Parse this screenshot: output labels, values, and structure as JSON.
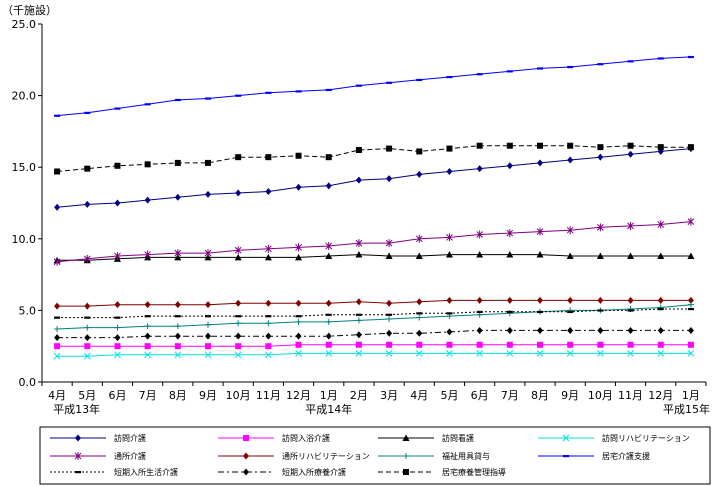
{
  "chart_data": {
    "type": "line",
    "unit_label": "（千施設）",
    "x": [
      "4月",
      "5月",
      "6月",
      "7月",
      "8月",
      "9月",
      "10月",
      "11月",
      "12月",
      "1月",
      "2月",
      "3月",
      "4月",
      "5月",
      "6月",
      "7月",
      "8月",
      "9月",
      "10月",
      "11月",
      "12月",
      "1月"
    ],
    "year_labels": [
      {
        "label": "平成13年",
        "index": 0
      },
      {
        "label": "平成14年",
        "index": 9
      },
      {
        "label": "平成15年",
        "index": 21
      }
    ],
    "ylim": [
      0,
      25
    ],
    "yticks": [
      "0.0",
      "5.0",
      "10.0",
      "15.0",
      "20.0",
      "25.0"
    ],
    "grid": false,
    "legend_position": "bottom",
    "series": [
      {
        "name": "訪問介護",
        "color": "#000080",
        "marker": "diamond",
        "dash": "solid",
        "values": [
          12.2,
          12.4,
          12.5,
          12.7,
          12.9,
          13.1,
          13.2,
          13.3,
          13.6,
          13.7,
          14.1,
          14.2,
          14.5,
          14.7,
          14.9,
          15.1,
          15.3,
          15.5,
          15.7,
          15.9,
          16.1,
          16.3
        ]
      },
      {
        "name": "訪問入浴介護",
        "color": "#ff00ff",
        "marker": "square",
        "dash": "solid",
        "values": [
          2.5,
          2.5,
          2.5,
          2.5,
          2.5,
          2.5,
          2.5,
          2.5,
          2.6,
          2.6,
          2.6,
          2.6,
          2.6,
          2.6,
          2.6,
          2.6,
          2.6,
          2.6,
          2.6,
          2.6,
          2.6,
          2.6
        ]
      },
      {
        "name": "訪問看護",
        "color": "#000000",
        "marker": "triangle",
        "dash": "solid",
        "values": [
          8.5,
          8.5,
          8.6,
          8.7,
          8.7,
          8.7,
          8.7,
          8.7,
          8.7,
          8.8,
          8.9,
          8.8,
          8.8,
          8.9,
          8.9,
          8.9,
          8.9,
          8.8,
          8.8,
          8.8,
          8.8,
          8.8
        ]
      },
      {
        "name": "訪問リハビリテーション",
        "color": "#00e0e0",
        "marker": "x",
        "dash": "solid",
        "values": [
          1.8,
          1.8,
          1.9,
          1.9,
          1.9,
          1.9,
          1.9,
          1.9,
          2.0,
          2.0,
          2.0,
          2.0,
          2.0,
          2.0,
          2.0,
          2.0,
          2.0,
          2.0,
          2.0,
          2.0,
          2.0,
          2.0
        ]
      },
      {
        "name": "通所介護",
        "color": "#800080",
        "marker": "star",
        "dash": "solid",
        "values": [
          8.4,
          8.6,
          8.8,
          8.9,
          9.0,
          9.0,
          9.2,
          9.3,
          9.4,
          9.5,
          9.7,
          9.7,
          10.0,
          10.1,
          10.3,
          10.4,
          10.5,
          10.6,
          10.8,
          10.9,
          11.0,
          11.2
        ]
      },
      {
        "name": "通所リハビリテーション",
        "color": "#800000",
        "marker": "diamond",
        "dash": "solid",
        "values": [
          5.3,
          5.3,
          5.4,
          5.4,
          5.4,
          5.4,
          5.5,
          5.5,
          5.5,
          5.5,
          5.6,
          5.5,
          5.6,
          5.7,
          5.7,
          5.7,
          5.7,
          5.7,
          5.7,
          5.7,
          5.7,
          5.7
        ]
      },
      {
        "name": "福祉用具貸与",
        "color": "#008080",
        "marker": "plus",
        "dash": "solid",
        "values": [
          3.7,
          3.8,
          3.8,
          3.9,
          3.9,
          4.0,
          4.1,
          4.1,
          4.2,
          4.2,
          4.3,
          4.4,
          4.5,
          4.6,
          4.7,
          4.8,
          4.9,
          5.0,
          5.0,
          5.1,
          5.2,
          5.4
        ]
      },
      {
        "name": "居宅介護支援",
        "color": "#0000ff",
        "marker": "dash",
        "dash": "solid",
        "values": [
          18.6,
          18.8,
          19.1,
          19.4,
          19.7,
          19.8,
          20.0,
          20.2,
          20.3,
          20.4,
          20.7,
          20.9,
          21.1,
          21.3,
          21.5,
          21.7,
          21.9,
          22.0,
          22.2,
          22.4,
          22.6,
          22.7
        ]
      },
      {
        "name": "短期入所生活介護",
        "color": "#000000",
        "marker": "dash",
        "dash": "dotted",
        "values": [
          4.5,
          4.5,
          4.5,
          4.6,
          4.6,
          4.6,
          4.6,
          4.6,
          4.6,
          4.7,
          4.7,
          4.7,
          4.8,
          4.8,
          4.9,
          4.9,
          4.9,
          4.9,
          5.0,
          5.0,
          5.1,
          5.1
        ]
      },
      {
        "name": "短期入所療養介護",
        "color": "#000000",
        "marker": "diamond",
        "dash": "dashdot",
        "values": [
          3.1,
          3.1,
          3.1,
          3.2,
          3.2,
          3.2,
          3.2,
          3.2,
          3.2,
          3.2,
          3.3,
          3.4,
          3.4,
          3.5,
          3.6,
          3.6,
          3.6,
          3.6,
          3.6,
          3.6,
          3.6,
          3.6
        ]
      },
      {
        "name": "居宅療養管理指導",
        "color": "#000000",
        "marker": "square",
        "dash": "dashed",
        "values": [
          14.7,
          14.9,
          15.1,
          15.2,
          15.3,
          15.3,
          15.7,
          15.7,
          15.8,
          15.7,
          16.2,
          16.3,
          16.1,
          16.3,
          16.5,
          16.5,
          16.5,
          16.5,
          16.4,
          16.5,
          16.4,
          16.4
        ]
      }
    ]
  }
}
